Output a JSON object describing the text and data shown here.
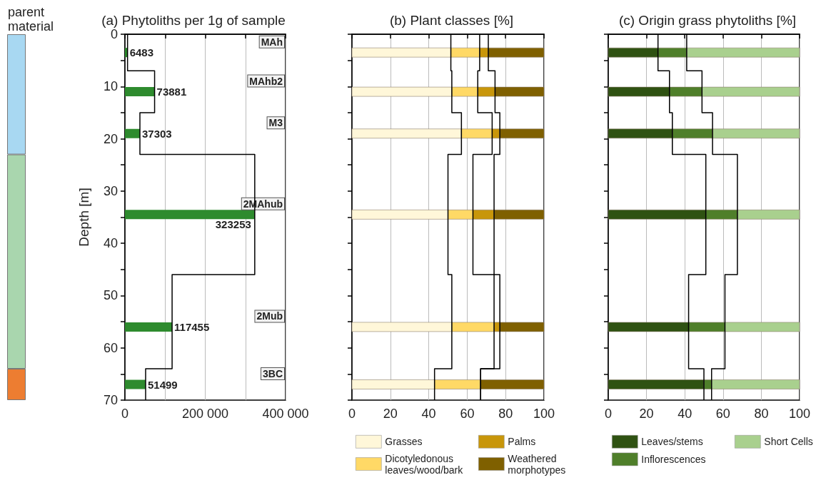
{
  "chart_data": [
    {
      "type": "bar",
      "stacked": true,
      "title": "parent material",
      "categories": [
        null
      ],
      "series": [
        {
          "color": "#a8d8f2",
          "values": [
            23
          ]
        },
        {
          "color": "#a9d6ae",
          "values": [
            41
          ]
        },
        {
          "color": "#ed7d31",
          "values": [
            6
          ]
        }
      ],
      "ylim": [
        70,
        0
      ],
      "yticks": [
        0,
        10,
        20,
        30,
        40,
        50,
        60,
        70
      ],
      "tick_labels": false
    },
    {
      "type": "bar",
      "orientation": "horizontal",
      "title": "(a) Phytoliths per 1g of sample",
      "ylabel": "Depth [m]",
      "x": [
        3.5,
        11,
        19,
        34.5,
        56,
        67
      ],
      "series": [
        {
          "color": "#2e8b2e",
          "values": [
            6483,
            73881,
            37303,
            323253,
            117455,
            51499
          ],
          "value_labels": [
            "6483",
            "73881",
            "37303",
            "323253",
            "117455",
            "51499"
          ]
        },
        {
          "type": "step",
          "color": "#000000",
          "x": [
            0,
            7,
            15,
            23,
            46,
            64,
            70
          ],
          "values": [
            6483,
            73881,
            37303,
            323253,
            117455,
            51499,
            51499
          ]
        }
      ],
      "xlim": [
        0,
        400000
      ],
      "xticks": [
        0,
        {
          "value": 100000,
          "label": null
        },
        {
          "value": 200000,
          "label": "200 000"
        },
        {
          "value": 300000,
          "label": null
        },
        {
          "value": 400000,
          "label": "400 000"
        }
      ],
      "ylim": [
        70,
        0
      ],
      "yticks": [
        0,
        {
          "value": 5,
          "label": null
        },
        10,
        {
          "value": 15,
          "label": null
        },
        20,
        {
          "value": 25,
          "label": null
        },
        30,
        {
          "value": 35,
          "label": null
        },
        40,
        {
          "value": 45,
          "label": null
        },
        50,
        {
          "value": 55,
          "label": null
        },
        60,
        {
          "value": 65,
          "label": null
        },
        70
      ],
      "grid": "x",
      "annotations": [
        "MAh",
        "MAhb2",
        "M3",
        "2MAhub",
        "2Mub",
        "3BC"
      ]
    },
    {
      "type": "bar",
      "orientation": "horizontal",
      "stacked": true,
      "title": "(b) Plant classes [%]",
      "x": [
        3.5,
        11,
        19,
        34.5,
        56,
        67
      ],
      "series": [
        {
          "name": "Grasses",
          "color": "#fff7d9",
          "values": [
            51.5,
            52,
            57,
            50,
            52,
            43
          ]
        },
        {
          "name": "Dicotyledonous leaves/wood/bark",
          "color": "#ffd966",
          "values": [
            15,
            13.5,
            16,
            13,
            22,
            24
          ]
        },
        {
          "name": "Palms",
          "color": "#c8960a",
          "values": [
            4.5,
            9,
            4,
            11,
            3,
            null
          ]
        },
        {
          "name": "Weathered morphotypes",
          "color": "#7f6000",
          "values": [
            29,
            25.5,
            23,
            26,
            23,
            33
          ]
        },
        {
          "type": "step",
          "color": "#000000",
          "x": [
            0,
            7,
            15,
            23,
            46,
            64,
            70
          ],
          "values": [
            51.5,
            52,
            57,
            50,
            52,
            43,
            43
          ]
        },
        {
          "type": "step",
          "color": "#000000",
          "x": [
            0,
            7,
            15,
            23,
            46,
            64,
            70
          ],
          "values": [
            66.5,
            65.5,
            73,
            63,
            74,
            67,
            67
          ]
        },
        {
          "type": "step",
          "color": "#000000",
          "x": [
            0,
            7,
            15,
            23,
            46,
            64,
            70
          ],
          "values": [
            71,
            74.5,
            77,
            74,
            77,
            67,
            67
          ]
        }
      ],
      "xlim": [
        0,
        100
      ],
      "xticks": [
        0,
        20,
        40,
        60,
        80,
        100
      ],
      "ylim": [
        70,
        0
      ],
      "yticks": [
        0,
        {
          "value": 5,
          "label": null
        },
        10,
        {
          "value": 15,
          "label": null
        },
        20,
        {
          "value": 25,
          "label": null
        },
        30,
        {
          "value": 35,
          "label": null
        },
        40,
        {
          "value": 45,
          "label": null
        },
        50,
        {
          "value": 55,
          "label": null
        },
        60,
        {
          "value": 65,
          "label": null
        },
        70
      ],
      "tick_labels": "x",
      "grid": "x",
      "legend": "bottom"
    },
    {
      "type": "bar",
      "orientation": "horizontal",
      "stacked": true,
      "title": "(c) Origin grass phytoliths [%]",
      "x": [
        3.5,
        11,
        19,
        34.5,
        56,
        67
      ],
      "series": [
        {
          "name": "Leaves/stems",
          "color": "#2f5212",
          "values": [
            26,
            32,
            33.5,
            51,
            42,
            50
          ]
        },
        {
          "name": "Inflorescences",
          "color": "#4f7f2a",
          "values": [
            15,
            17,
            21,
            16.5,
            19,
            4
          ]
        },
        {
          "name": "Short Cells",
          "color": "#a9d08e",
          "values": [
            59,
            51,
            45.5,
            32.5,
            39,
            46
          ]
        },
        {
          "type": "step",
          "color": "#000000",
          "x": [
            0,
            7,
            15,
            23,
            46,
            64,
            70
          ],
          "values": [
            26,
            32,
            33.5,
            51,
            42,
            50,
            50
          ]
        },
        {
          "type": "step",
          "color": "#000000",
          "x": [
            0,
            7,
            15,
            23,
            46,
            64,
            70
          ],
          "values": [
            41,
            49,
            54.5,
            67.5,
            61,
            54,
            54
          ]
        }
      ],
      "xlim": [
        0,
        100
      ],
      "xticks": [
        0,
        20,
        40,
        60,
        80,
        100
      ],
      "ylim": [
        70,
        0
      ],
      "yticks": [
        0,
        {
          "value": 5,
          "label": null
        },
        10,
        {
          "value": 15,
          "label": null
        },
        20,
        {
          "value": 25,
          "label": null
        },
        30,
        {
          "value": 35,
          "label": null
        },
        40,
        {
          "value": 45,
          "label": null
        },
        50,
        {
          "value": 55,
          "label": null
        },
        60,
        {
          "value": 65,
          "label": null
        },
        70
      ],
      "tick_labels": "x",
      "grid": "x",
      "legend": "bottom"
    }
  ]
}
